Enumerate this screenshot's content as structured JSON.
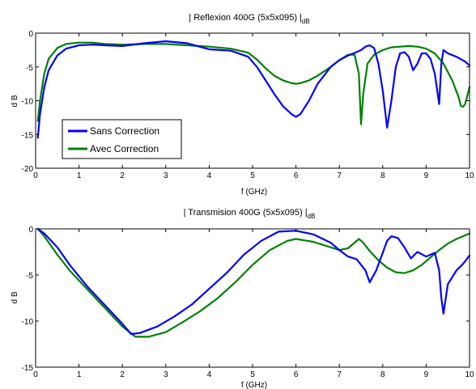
{
  "chart_data": [
    {
      "type": "line",
      "title": "| Reflexion 400G (5x5x095) |",
      "title_sub": "dB",
      "xlabel": "f (GHz)",
      "ylabel": "d B",
      "xlim": [
        0,
        10
      ],
      "ylim": [
        -20,
        0
      ],
      "xticks": [
        "0",
        "1",
        "2",
        "3",
        "4",
        "5",
        "6",
        "7",
        "8",
        "9",
        "10"
      ],
      "yticks": [
        "0",
        "-5",
        "-10",
        "-15",
        "-20"
      ],
      "ytick_values": [
        0,
        -5,
        -10,
        -15,
        -20
      ],
      "grid": false,
      "legend_position": "left",
      "series": [
        {
          "name": "Sans Correction",
          "color": "#0000ff",
          "x": [
            0.05,
            0.1,
            0.2,
            0.3,
            0.5,
            0.7,
            1.0,
            1.3,
            1.6,
            2.0,
            2.5,
            3.0,
            3.5,
            4.0,
            4.5,
            4.9,
            5.1,
            5.3,
            5.5,
            5.7,
            5.9,
            6.0,
            6.1,
            6.3,
            6.5,
            6.8,
            7.0,
            7.2,
            7.4,
            7.5,
            7.6,
            7.7,
            7.8,
            7.9,
            8.0,
            8.1,
            8.2,
            8.3,
            8.4,
            8.5,
            8.6,
            8.7,
            8.8,
            8.9,
            9.0,
            9.1,
            9.2,
            9.3,
            9.35,
            9.4,
            9.5,
            9.7,
            9.9,
            10.0
          ],
          "y": [
            -15.5,
            -12.0,
            -8.0,
            -5.5,
            -3.3,
            -2.3,
            -1.8,
            -1.7,
            -1.8,
            -1.9,
            -1.5,
            -1.2,
            -1.5,
            -2.4,
            -2.6,
            -3.5,
            -5.0,
            -7.0,
            -9.0,
            -10.8,
            -12.0,
            -12.4,
            -12.0,
            -10.0,
            -7.5,
            -5.0,
            -4.0,
            -3.3,
            -2.8,
            -2.5,
            -2.0,
            -1.8,
            -2.2,
            -4.5,
            -8.5,
            -14.0,
            -10.0,
            -5.0,
            -3.0,
            -2.8,
            -3.5,
            -5.5,
            -4.5,
            -3.0,
            -3.0,
            -3.8,
            -6.0,
            -10.5,
            -4.5,
            -2.5,
            -3.0,
            -3.5,
            -4.2,
            -4.8
          ]
        },
        {
          "name": "Avec Correction",
          "color": "#008000",
          "x": [
            0.05,
            0.1,
            0.2,
            0.3,
            0.5,
            0.7,
            1.0,
            1.3,
            1.6,
            2.0,
            2.5,
            3.0,
            3.5,
            4.0,
            4.5,
            4.9,
            5.1,
            5.3,
            5.5,
            5.7,
            5.9,
            6.0,
            6.1,
            6.3,
            6.5,
            6.8,
            7.0,
            7.2,
            7.35,
            7.45,
            7.5,
            7.55,
            7.65,
            7.8,
            8.0,
            8.2,
            8.4,
            8.6,
            8.8,
            9.0,
            9.2,
            9.4,
            9.6,
            9.75,
            9.8,
            9.85,
            9.9,
            10.0
          ],
          "y": [
            -13.0,
            -10.0,
            -6.0,
            -3.8,
            -2.2,
            -1.6,
            -1.4,
            -1.4,
            -1.6,
            -1.7,
            -1.6,
            -1.6,
            -1.8,
            -2.0,
            -2.3,
            -2.9,
            -3.9,
            -5.2,
            -6.3,
            -7.0,
            -7.4,
            -7.5,
            -7.4,
            -7.0,
            -6.3,
            -5.0,
            -4.0,
            -3.2,
            -3.2,
            -6.0,
            -13.5,
            -9.0,
            -4.5,
            -3.2,
            -2.5,
            -2.1,
            -2.0,
            -1.9,
            -2.0,
            -2.3,
            -3.0,
            -4.5,
            -7.0,
            -9.5,
            -10.8,
            -10.9,
            -10.5,
            -8.0
          ]
        }
      ]
    },
    {
      "type": "line",
      "title": "| Transmision  400G (5x5x095) |",
      "title_sub": "dB",
      "xlabel": "f (GHz)",
      "ylabel": "d B",
      "xlim": [
        0,
        10
      ],
      "ylim": [
        -15,
        0
      ],
      "xticks": [
        "0",
        "1",
        "2",
        "3",
        "4",
        "5",
        "6",
        "7",
        "8",
        "9",
        "10"
      ],
      "yticks": [
        "0",
        "-5",
        "-10",
        "-15"
      ],
      "ytick_values": [
        0,
        -5,
        -10,
        -15
      ],
      "grid": false,
      "series": [
        {
          "name": "Sans Correction",
          "color": "#0000ff",
          "x": [
            0.05,
            0.2,
            0.5,
            0.8,
            1.2,
            1.6,
            2.0,
            2.2,
            2.4,
            2.8,
            3.2,
            3.6,
            4.0,
            4.4,
            4.8,
            5.2,
            5.6,
            6.0,
            6.4,
            6.8,
            7.0,
            7.2,
            7.4,
            7.6,
            7.7,
            7.85,
            8.0,
            8.1,
            8.2,
            8.35,
            8.5,
            8.65,
            8.8,
            9.0,
            9.2,
            9.3,
            9.35,
            9.4,
            9.5,
            9.7,
            9.85,
            10.0
          ],
          "y": [
            0.0,
            -0.5,
            -2.0,
            -4.0,
            -6.3,
            -8.3,
            -10.3,
            -11.4,
            -11.3,
            -10.6,
            -9.5,
            -8.2,
            -6.5,
            -4.8,
            -2.8,
            -1.3,
            -0.3,
            -0.2,
            -0.6,
            -1.5,
            -2.3,
            -3.0,
            -3.3,
            -4.5,
            -5.8,
            -4.5,
            -2.6,
            -1.3,
            -0.8,
            -1.0,
            -2.0,
            -3.2,
            -2.5,
            -3.0,
            -2.6,
            -4.5,
            -7.5,
            -9.2,
            -6.0,
            -4.5,
            -3.8,
            -2.9
          ]
        },
        {
          "name": "Avec Correction",
          "color": "#008000",
          "x": [
            0.05,
            0.2,
            0.5,
            0.8,
            1.2,
            1.6,
            2.0,
            2.3,
            2.6,
            3.0,
            3.4,
            3.8,
            4.2,
            4.6,
            5.0,
            5.4,
            5.8,
            6.0,
            6.4,
            6.8,
            7.0,
            7.2,
            7.35,
            7.45,
            7.55,
            7.7,
            7.9,
            8.1,
            8.3,
            8.5,
            8.7,
            8.9,
            9.1,
            9.3,
            9.5,
            9.7,
            9.9,
            10.0
          ],
          "y": [
            0.0,
            -0.8,
            -2.8,
            -4.6,
            -6.6,
            -8.6,
            -10.6,
            -11.7,
            -11.7,
            -11.2,
            -10.1,
            -8.9,
            -7.5,
            -5.8,
            -3.9,
            -2.3,
            -1.3,
            -1.1,
            -1.4,
            -2.0,
            -2.3,
            -2.1,
            -1.5,
            -1.1,
            -1.5,
            -2.4,
            -3.4,
            -4.2,
            -4.7,
            -4.8,
            -4.5,
            -3.9,
            -3.1,
            -2.3,
            -1.6,
            -1.1,
            -0.7,
            -0.5
          ]
        }
      ]
    }
  ]
}
